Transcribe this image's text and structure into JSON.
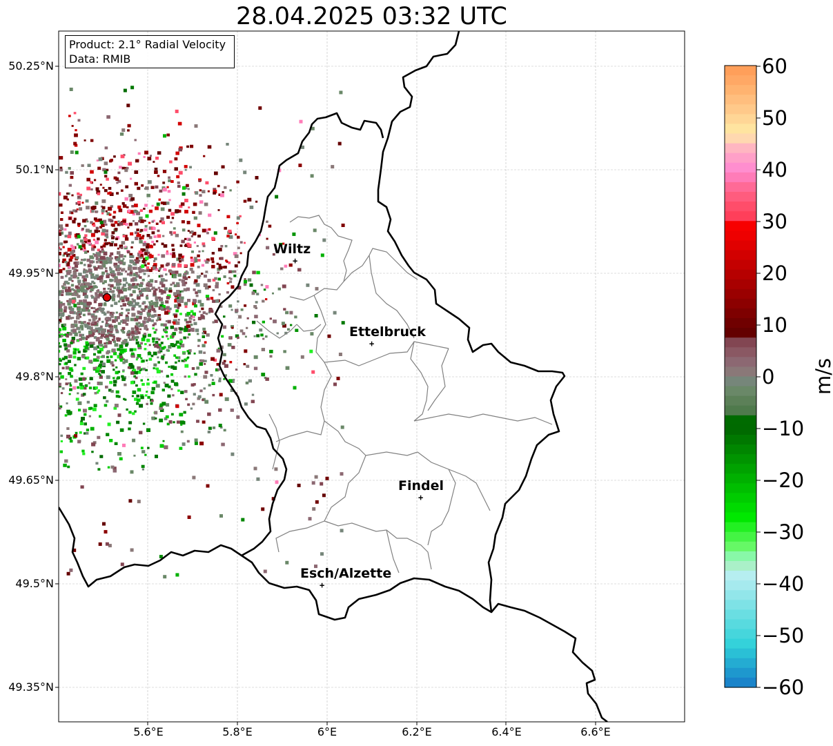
{
  "title": "28.04.2025 03:32 UTC",
  "info": {
    "product": "Product: 2.1° Radial Velocity",
    "source": "Data: RMIB"
  },
  "map": {
    "lon_range": [
      5.4,
      6.8
    ],
    "lat_range": [
      49.3,
      50.3
    ],
    "x_ticks": [
      "5.6°E",
      "5.8°E",
      "6°E",
      "6.2°E",
      "6.4°E",
      "6.6°E"
    ],
    "y_ticks": [
      "50.25°N",
      "50.1°N",
      "49.95°N",
      "49.8°N",
      "49.65°N",
      "49.5°N",
      "49.35°N"
    ],
    "gridlines": true,
    "radar_site": {
      "lon": 5.505,
      "lat": 49.914
    },
    "cities": [
      {
        "name": "Wiltz",
        "lon": 5.933,
        "lat": 49.967
      },
      {
        "name": "Ettelbruck",
        "lon": 6.104,
        "lat": 49.847
      },
      {
        "name": "Findel",
        "lon": 6.213,
        "lat": 49.627
      },
      {
        "name": "Esch/Alzette",
        "lon": 5.981,
        "lat": 49.5
      }
    ]
  },
  "colorbar": {
    "label": "m/s",
    "min": -60,
    "max": 60,
    "ticks": [
      "60",
      "50",
      "40",
      "30",
      "20",
      "10",
      "0",
      "−10",
      "−20",
      "−30",
      "−40",
      "−50",
      "−60"
    ]
  }
}
